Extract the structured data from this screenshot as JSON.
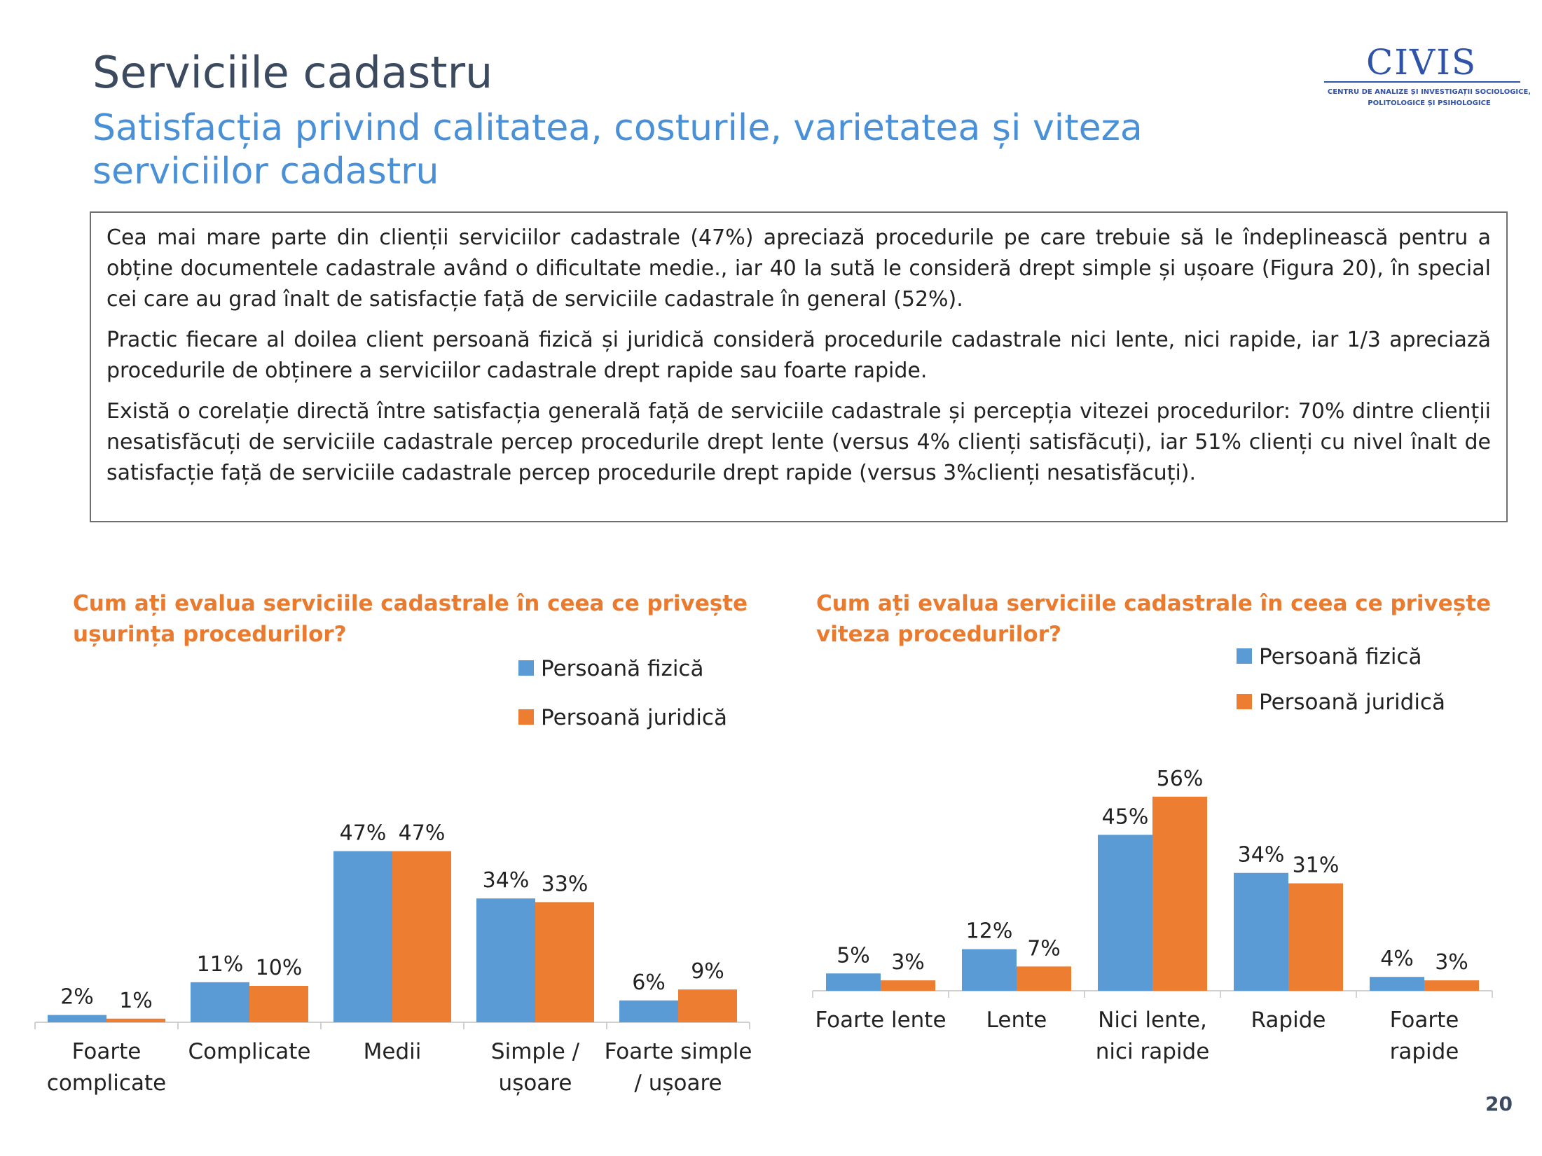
{
  "header": {
    "title": "Serviciile cadastru",
    "subtitle": "Satisfacția privind calitatea, costurile, varietatea și viteza serviciilor cadastru"
  },
  "logo": {
    "brand": "CIVIS",
    "caption_line1": "CENTRU DE ANALIZE ȘI INVESTIGAȚII SOCIOLOGICE,",
    "caption_line2": "POLITOLOGICE ȘI PSIHOLOGICE"
  },
  "summary": {
    "p1": "Cea mai mare parte din clienții serviciilor cadastrale (47%) apreciază procedurile pe care trebuie să le îndeplinească pentru a obține documentele cadastrale având o dificultate medie., iar 40 la sută le consideră drept simple și ușoare (Figura 20), în special cei care au grad înalt de satisfacție față de serviciile cadastrale în general (52%).",
    "p2": "Practic fiecare al doilea client persoană fizică și juridică consideră procedurile cadastrale nici lente, nici rapide, iar 1/3 apreciază procedurile de obținere a serviciilor cadastrale drept rapide sau foarte rapide.",
    "p3": "Există o corelație directă între satisfacția generală față de serviciile cadastrale și percepția vitezei procedurilor: 70% dintre clienții nesatisfăcuți de serviciile cadastrale percep procedurile drept lente (versus 4% clienți satisfăcuți), iar 51% clienți cu nivel înalt de satisfacție față de serviciile cadastrale percep procedurile drept rapide (versus 3%clienți nesatisfăcuți)."
  },
  "colors": {
    "fizica": "#5b9bd5",
    "juridica": "#ed7d31",
    "title_orange": "#ea7a2e",
    "subtitle_blue": "#4a90d6"
  },
  "page_number": "20",
  "chart_data": [
    {
      "type": "bar",
      "title": "Cum ați evalua serviciile cadastrale în ceea ce privește ușurința procedurilor?",
      "categories": [
        [
          "Foarte",
          "complicate"
        ],
        [
          "Complicate"
        ],
        [
          "Medii"
        ],
        [
          "Simple /",
          "ușoare"
        ],
        [
          "Foarte simple",
          "/ ușoare"
        ]
      ],
      "series": [
        {
          "name": "Persoană fizică",
          "values": [
            2,
            11,
            47,
            34,
            6
          ],
          "labels": [
            "2%",
            "11%",
            "47%",
            "34%",
            "6%"
          ]
        },
        {
          "name": "Persoană juridică",
          "values": [
            1,
            10,
            47,
            33,
            9
          ],
          "labels": [
            "1%",
            "10%",
            "47%",
            "33%",
            "9%"
          ]
        }
      ],
      "ylim": [
        0,
        50
      ],
      "legend": "top-right",
      "grid": false
    },
    {
      "type": "bar",
      "title": "Cum ați evalua serviciile cadastrale în ceea ce privește viteza procedurilor?",
      "categories": [
        [
          "Foarte lente"
        ],
        [
          "Lente"
        ],
        [
          "Nici lente,",
          "nici rapide"
        ],
        [
          "Rapide"
        ],
        [
          "Foarte",
          "rapide"
        ]
      ],
      "series": [
        {
          "name": "Persoană fizică",
          "values": [
            5,
            12,
            45,
            34,
            4
          ],
          "labels": [
            "5%",
            "12%",
            "45%",
            "34%",
            "4%"
          ]
        },
        {
          "name": "Persoană juridică",
          "values": [
            3,
            7,
            56,
            31,
            3
          ],
          "labels": [
            "3%",
            "7%",
            "56%",
            "31%",
            "3%"
          ]
        }
      ],
      "ylim": [
        0,
        60
      ],
      "legend": "top-right",
      "grid": false
    }
  ]
}
